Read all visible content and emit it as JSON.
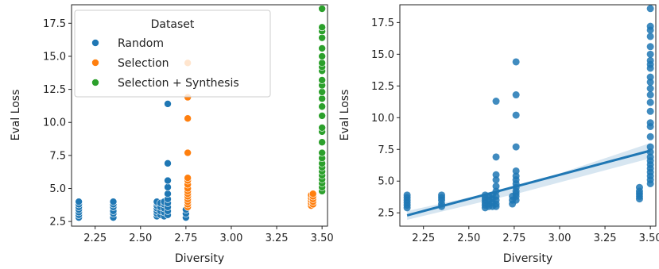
{
  "chart_data": [
    {
      "type": "scatter",
      "xlabel": "Diversity",
      "ylabel": "Eval Loss",
      "xlim": [
        2.12,
        3.53
      ],
      "ylim": [
        2.15,
        18.9
      ],
      "xticks": [
        "2.25",
        "2.50",
        "2.75",
        "3.00",
        "3.25",
        "3.50"
      ],
      "yticks": [
        "2.5",
        "5.0",
        "7.5",
        "10.0",
        "12.5",
        "15.0",
        "17.5"
      ],
      "grid": false,
      "legend": {
        "title": "Dataset",
        "placement": "top-left",
        "entries": [
          "Random",
          "Selection",
          "Selection + Synthesis"
        ]
      },
      "series": [
        {
          "name": "Random",
          "color": "#1f77b4",
          "points": [
            [
              2.16,
              2.8
            ],
            [
              2.16,
              3.0
            ],
            [
              2.16,
              3.2
            ],
            [
              2.16,
              3.4
            ],
            [
              2.16,
              3.6
            ],
            [
              2.16,
              3.8
            ],
            [
              2.16,
              4.0
            ],
            [
              2.35,
              2.8
            ],
            [
              2.35,
              3.1
            ],
            [
              2.35,
              3.3
            ],
            [
              2.35,
              3.6
            ],
            [
              2.35,
              3.8
            ],
            [
              2.35,
              4.0
            ],
            [
              2.59,
              2.9
            ],
            [
              2.59,
              3.1
            ],
            [
              2.59,
              3.3
            ],
            [
              2.59,
              3.5
            ],
            [
              2.59,
              3.7
            ],
            [
              2.59,
              3.9
            ],
            [
              2.59,
              4.0
            ],
            [
              2.61,
              3.0
            ],
            [
              2.61,
              3.3
            ],
            [
              2.61,
              3.6
            ],
            [
              2.61,
              3.9
            ],
            [
              2.63,
              2.9
            ],
            [
              2.63,
              3.2
            ],
            [
              2.63,
              3.5
            ],
            [
              2.63,
              3.8
            ],
            [
              2.63,
              4.0
            ],
            [
              2.65,
              3.0
            ],
            [
              2.65,
              3.3
            ],
            [
              2.65,
              3.6
            ],
            [
              2.65,
              3.9
            ],
            [
              2.65,
              4.2
            ],
            [
              2.65,
              4.6
            ],
            [
              2.65,
              5.1
            ],
            [
              2.65,
              5.6
            ],
            [
              2.65,
              6.9
            ],
            [
              2.65,
              11.4
            ],
            [
              2.75,
              2.8
            ],
            [
              2.75,
              3.1
            ],
            [
              2.75,
              3.4
            ]
          ]
        },
        {
          "name": "Selection",
          "color": "#ff7f0e",
          "points": [
            [
              2.76,
              3.6
            ],
            [
              2.76,
              3.8
            ],
            [
              2.76,
              4.0
            ],
            [
              2.76,
              4.2
            ],
            [
              2.76,
              4.4
            ],
            [
              2.76,
              4.6
            ],
            [
              2.76,
              4.8
            ],
            [
              2.76,
              5.0
            ],
            [
              2.76,
              5.3
            ],
            [
              2.76,
              5.6
            ],
            [
              2.76,
              5.8
            ],
            [
              2.76,
              7.7
            ],
            [
              2.76,
              10.3
            ],
            [
              2.76,
              11.9
            ],
            [
              2.76,
              14.5
            ],
            [
              3.44,
              3.7
            ],
            [
              3.44,
              3.9
            ],
            [
              3.44,
              4.1
            ],
            [
              3.44,
              4.3
            ],
            [
              3.44,
              4.5
            ],
            [
              3.45,
              3.8
            ],
            [
              3.45,
              4.0
            ],
            [
              3.45,
              4.2
            ],
            [
              3.45,
              4.4
            ],
            [
              3.45,
              4.6
            ]
          ]
        },
        {
          "name": "Selection + Synthesis",
          "color": "#2ca02c",
          "points": [
            [
              3.5,
              4.8
            ],
            [
              3.5,
              5.1
            ],
            [
              3.5,
              5.4
            ],
            [
              3.5,
              5.7
            ],
            [
              3.5,
              6.0
            ],
            [
              3.5,
              6.3
            ],
            [
              3.5,
              6.6
            ],
            [
              3.5,
              6.9
            ],
            [
              3.5,
              7.3
            ],
            [
              3.5,
              7.7
            ],
            [
              3.5,
              8.5
            ],
            [
              3.5,
              9.3
            ],
            [
              3.5,
              9.6
            ],
            [
              3.5,
              10.5
            ],
            [
              3.5,
              11.2
            ],
            [
              3.5,
              11.8
            ],
            [
              3.5,
              12.3
            ],
            [
              3.5,
              12.8
            ],
            [
              3.5,
              13.2
            ],
            [
              3.5,
              13.9
            ],
            [
              3.5,
              14.2
            ],
            [
              3.5,
              14.5
            ],
            [
              3.5,
              15.0
            ],
            [
              3.5,
              15.6
            ],
            [
              3.5,
              16.4
            ],
            [
              3.5,
              16.9
            ],
            [
              3.5,
              17.2
            ],
            [
              3.5,
              18.6
            ]
          ]
        }
      ]
    },
    {
      "type": "scatter",
      "xlabel": "Diversity",
      "ylabel": "Eval Loss",
      "xlim": [
        2.12,
        3.53
      ],
      "ylim": [
        1.45,
        18.9
      ],
      "xticks": [
        "2.25",
        "2.50",
        "2.75",
        "3.00",
        "3.25",
        "3.50"
      ],
      "yticks": [
        "2.5",
        "5.0",
        "7.5",
        "10.0",
        "12.5",
        "15.0",
        "17.5"
      ],
      "grid": false,
      "color": "#1f77b4",
      "regression": {
        "x": [
          2.16,
          3.5
        ],
        "y": [
          2.3,
          7.4
        ],
        "ci_lower": [
          1.95,
          6.8
        ],
        "ci_mid_lower": [
          4.1,
          4.3
        ],
        "ci_mid_upper": [
          4.6,
          4.9
        ],
        "ci_upper": [
          2.65,
          8.0
        ],
        "ci_mid_x": 2.79
      },
      "points": [
        [
          2.16,
          2.9
        ],
        [
          2.16,
          3.1
        ],
        [
          2.16,
          3.3
        ],
        [
          2.16,
          3.5
        ],
        [
          2.16,
          3.7
        ],
        [
          2.16,
          3.9
        ],
        [
          2.35,
          3.0
        ],
        [
          2.35,
          3.2
        ],
        [
          2.35,
          3.5
        ],
        [
          2.35,
          3.7
        ],
        [
          2.35,
          3.9
        ],
        [
          2.59,
          2.9
        ],
        [
          2.59,
          3.1
        ],
        [
          2.59,
          3.3
        ],
        [
          2.59,
          3.5
        ],
        [
          2.59,
          3.7
        ],
        [
          2.59,
          3.9
        ],
        [
          2.61,
          3.0
        ],
        [
          2.61,
          3.2
        ],
        [
          2.61,
          3.5
        ],
        [
          2.61,
          3.8
        ],
        [
          2.63,
          3.0
        ],
        [
          2.63,
          3.3
        ],
        [
          2.63,
          3.6
        ],
        [
          2.63,
          3.9
        ],
        [
          2.65,
          3.0
        ],
        [
          2.65,
          3.2
        ],
        [
          2.65,
          3.5
        ],
        [
          2.65,
          3.8
        ],
        [
          2.65,
          4.2
        ],
        [
          2.65,
          4.6
        ],
        [
          2.65,
          5.1
        ],
        [
          2.65,
          5.5
        ],
        [
          2.65,
          6.9
        ],
        [
          2.65,
          11.3
        ],
        [
          2.74,
          3.2
        ],
        [
          2.74,
          3.5
        ],
        [
          2.74,
          3.8
        ],
        [
          2.76,
          3.5
        ],
        [
          2.76,
          3.8
        ],
        [
          2.76,
          4.0
        ],
        [
          2.76,
          4.2
        ],
        [
          2.76,
          4.5
        ],
        [
          2.76,
          4.8
        ],
        [
          2.76,
          5.1
        ],
        [
          2.76,
          5.4
        ],
        [
          2.76,
          5.8
        ],
        [
          2.76,
          7.7
        ],
        [
          2.76,
          10.2
        ],
        [
          2.76,
          11.8
        ],
        [
          2.76,
          14.4
        ],
        [
          3.44,
          3.6
        ],
        [
          3.44,
          3.8
        ],
        [
          3.44,
          4.0
        ],
        [
          3.44,
          4.2
        ],
        [
          3.44,
          4.5
        ],
        [
          3.5,
          4.8
        ],
        [
          3.5,
          5.1
        ],
        [
          3.5,
          5.4
        ],
        [
          3.5,
          5.7
        ],
        [
          3.5,
          6.0
        ],
        [
          3.5,
          6.3
        ],
        [
          3.5,
          6.6
        ],
        [
          3.5,
          6.9
        ],
        [
          3.5,
          7.3
        ],
        [
          3.5,
          7.7
        ],
        [
          3.5,
          8.5
        ],
        [
          3.5,
          9.3
        ],
        [
          3.5,
          9.6
        ],
        [
          3.5,
          10.5
        ],
        [
          3.5,
          11.2
        ],
        [
          3.5,
          11.8
        ],
        [
          3.5,
          12.3
        ],
        [
          3.5,
          12.8
        ],
        [
          3.5,
          13.2
        ],
        [
          3.5,
          13.9
        ],
        [
          3.5,
          14.2
        ],
        [
          3.5,
          14.5
        ],
        [
          3.5,
          15.0
        ],
        [
          3.5,
          15.6
        ],
        [
          3.5,
          16.4
        ],
        [
          3.5,
          16.9
        ],
        [
          3.5,
          17.2
        ],
        [
          3.5,
          18.6
        ]
      ]
    }
  ]
}
